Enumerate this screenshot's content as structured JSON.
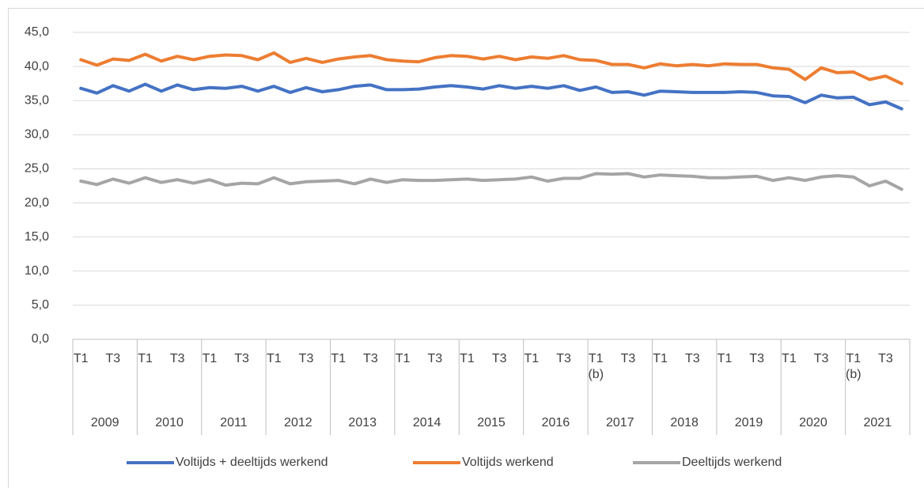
{
  "chart_data": {
    "type": "line",
    "categories": [
      "T1",
      null,
      "T3",
      null,
      "T1",
      null,
      "T3",
      null,
      "T1",
      null,
      "T3",
      null,
      "T1",
      null,
      "T3",
      null,
      "T1",
      null,
      "T3",
      null,
      "T1",
      null,
      "T3",
      null,
      "T1",
      null,
      "T3",
      null,
      "T1",
      null,
      "T3",
      null,
      "T1 (b)",
      null,
      "T3",
      null,
      "T1",
      null,
      "T3",
      null,
      "T1",
      null,
      "T3",
      null,
      "T1",
      null,
      "T3",
      null,
      "T1 (b)",
      null,
      "T3",
      null
    ],
    "groups": [
      "2009",
      "2010",
      "2011",
      "2012",
      "2013",
      "2014",
      "2015",
      "2016",
      "2017",
      "2018",
      "2019",
      "2020",
      "2021"
    ],
    "series": [
      {
        "name": "Voltijds + deeltijds werkend",
        "color": "#4472c4",
        "values": [
          36.8,
          36.1,
          37.2,
          36.4,
          37.4,
          36.4,
          37.3,
          36.6,
          36.9,
          36.8,
          37.1,
          36.4,
          37.1,
          36.2,
          36.9,
          36.3,
          36.6,
          37.1,
          37.3,
          36.6,
          36.6,
          36.7,
          37.0,
          37.2,
          37.0,
          36.7,
          37.2,
          36.8,
          37.1,
          36.8,
          37.2,
          36.5,
          37.0,
          36.2,
          36.3,
          35.8,
          36.4,
          36.3,
          36.2,
          36.2,
          36.2,
          36.3,
          36.2,
          35.7,
          35.6,
          34.7,
          35.8,
          35.4,
          35.5,
          34.4,
          34.8,
          33.8
        ]
      },
      {
        "name": "Voltijds werkend",
        "color": "#ed7d31",
        "values": [
          41.0,
          40.2,
          41.1,
          40.9,
          41.8,
          40.8,
          41.5,
          41.0,
          41.5,
          41.7,
          41.6,
          41.0,
          42.0,
          40.6,
          41.2,
          40.6,
          41.1,
          41.4,
          41.6,
          41.0,
          40.8,
          40.7,
          41.3,
          41.6,
          41.5,
          41.1,
          41.5,
          41.0,
          41.4,
          41.2,
          41.6,
          41.0,
          40.9,
          40.3,
          40.3,
          39.8,
          40.4,
          40.1,
          40.3,
          40.1,
          40.4,
          40.3,
          40.3,
          39.8,
          39.6,
          38.1,
          39.8,
          39.1,
          39.2,
          38.1,
          38.6,
          37.5
        ]
      },
      {
        "name": "Deeltijds werkend",
        "color": "#a5a5a5",
        "values": [
          23.2,
          22.7,
          23.5,
          22.9,
          23.7,
          23.0,
          23.4,
          22.9,
          23.4,
          22.6,
          22.9,
          22.8,
          23.7,
          22.8,
          23.1,
          23.2,
          23.3,
          22.8,
          23.5,
          23.0,
          23.4,
          23.3,
          23.3,
          23.4,
          23.5,
          23.3,
          23.4,
          23.5,
          23.8,
          23.2,
          23.6,
          23.6,
          24.3,
          24.2,
          24.3,
          23.8,
          24.1,
          24.0,
          23.9,
          23.7,
          23.7,
          23.8,
          23.9,
          23.3,
          23.7,
          23.3,
          23.8,
          24.0,
          23.8,
          22.5,
          23.2,
          22.0
        ]
      }
    ],
    "ylim": [
      0,
      45
    ],
    "yticks": [
      {
        "value": 0,
        "label": "0,0"
      },
      {
        "value": 5,
        "label": "5,0"
      },
      {
        "value": 10,
        "label": "10,0"
      },
      {
        "value": 15,
        "label": "15,0"
      },
      {
        "value": 20,
        "label": "20,0"
      },
      {
        "value": 25,
        "label": "25,0"
      },
      {
        "value": 30,
        "label": "30,0"
      },
      {
        "value": 35,
        "label": "35,0"
      },
      {
        "value": 40,
        "label": "40,0"
      },
      {
        "value": 45,
        "label": "45,0"
      }
    ],
    "grid": true,
    "legend": "bottom"
  }
}
